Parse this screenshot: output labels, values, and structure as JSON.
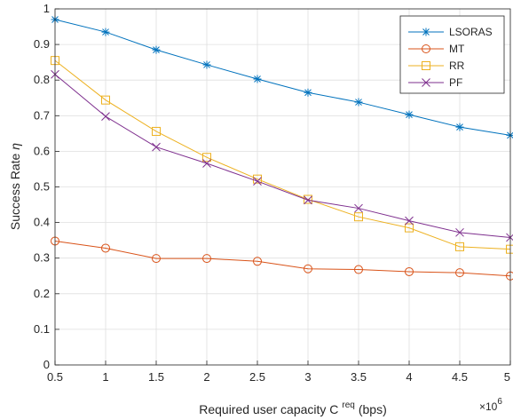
{
  "chart_data": {
    "type": "line",
    "title": "",
    "xlabel_main": "Required user capacity C",
    "xlabel_sup": "req",
    "xlabel_unit": "(bps)",
    "ylabel_main": "Success Rate",
    "ylabel_symbol": "η",
    "x_exponent_base": "×10",
    "x_exponent_power": "6",
    "x": [
      0.5,
      1,
      1.5,
      2,
      2.5,
      3,
      3.5,
      4,
      4.5,
      5
    ],
    "xlim": [
      0.5,
      5
    ],
    "ylim": [
      0,
      1
    ],
    "xticks": [
      "0.5",
      "1",
      "1.5",
      "2",
      "2.5",
      "3",
      "3.5",
      "4",
      "4.5",
      "5"
    ],
    "yticks": [
      "0",
      "0.1",
      "0.2",
      "0.3",
      "0.4",
      "0.5",
      "0.6",
      "0.7",
      "0.8",
      "0.9",
      "1"
    ],
    "grid": true,
    "legend_position": "top-right",
    "series": [
      {
        "name": "LSORAS",
        "color": "#0072BD",
        "marker": "asterisk",
        "values": [
          0.97,
          0.935,
          0.885,
          0.843,
          0.803,
          0.765,
          0.738,
          0.703,
          0.668,
          0.645
        ]
      },
      {
        "name": "MT",
        "color": "#D95319",
        "marker": "circle",
        "values": [
          0.348,
          0.328,
          0.299,
          0.299,
          0.291,
          0.27,
          0.268,
          0.262,
          0.259,
          0.25
        ]
      },
      {
        "name": "RR",
        "color": "#EDB120",
        "marker": "square",
        "values": [
          0.855,
          0.744,
          0.656,
          0.583,
          0.522,
          0.465,
          0.416,
          0.385,
          0.332,
          0.325
        ]
      },
      {
        "name": "PF",
        "color": "#7E2F8E",
        "marker": "x",
        "values": [
          0.816,
          0.698,
          0.612,
          0.566,
          0.516,
          0.463,
          0.44,
          0.405,
          0.372,
          0.358
        ]
      }
    ]
  }
}
